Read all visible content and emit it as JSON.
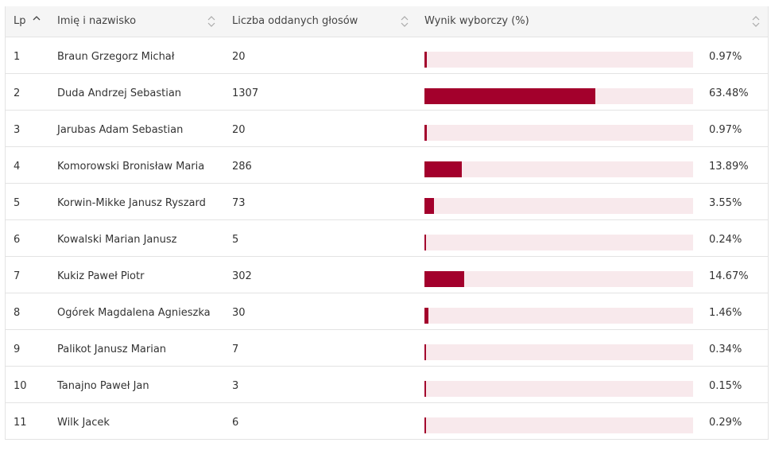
{
  "table": {
    "headers": {
      "lp": "Lp",
      "name": "Imię i nazwisko",
      "votes": "Liczba oddanych głosów",
      "result": "Wynik wyborczy (%)"
    },
    "rows": [
      {
        "lp": "1",
        "name": "Braun Grzegorz Michał",
        "votes": "20",
        "pct_label": "0.97%",
        "pct": 0.97
      },
      {
        "lp": "2",
        "name": "Duda Andrzej Sebastian",
        "votes": "1307",
        "pct_label": "63.48%",
        "pct": 63.48
      },
      {
        "lp": "3",
        "name": "Jarubas Adam Sebastian",
        "votes": "20",
        "pct_label": "0.97%",
        "pct": 0.97
      },
      {
        "lp": "4",
        "name": "Komorowski Bronisław Maria",
        "votes": "286",
        "pct_label": "13.89%",
        "pct": 13.89
      },
      {
        "lp": "5",
        "name": "Korwin-Mikke Janusz Ryszard",
        "votes": "73",
        "pct_label": "3.55%",
        "pct": 3.55
      },
      {
        "lp": "6",
        "name": "Kowalski Marian Janusz",
        "votes": "5",
        "pct_label": "0.24%",
        "pct": 0.24
      },
      {
        "lp": "7",
        "name": "Kukiz Paweł Piotr",
        "votes": "302",
        "pct_label": "14.67%",
        "pct": 14.67
      },
      {
        "lp": "8",
        "name": "Ogórek Magdalena Agnieszka",
        "votes": "30",
        "pct_label": "1.46%",
        "pct": 1.46
      },
      {
        "lp": "9",
        "name": "Palikot Janusz Marian",
        "votes": "7",
        "pct_label": "0.34%",
        "pct": 0.34
      },
      {
        "lp": "10",
        "name": "Tanajno Paweł Jan",
        "votes": "3",
        "pct_label": "0.15%",
        "pct": 0.15
      },
      {
        "lp": "11",
        "name": "Wilk Jacek",
        "votes": "6",
        "pct_label": "0.29%",
        "pct": 0.29
      }
    ]
  },
  "colors": {
    "bar_fill": "#a3002c",
    "bar_track": "#f8e9ec",
    "header_bg": "#f5f5f5"
  }
}
